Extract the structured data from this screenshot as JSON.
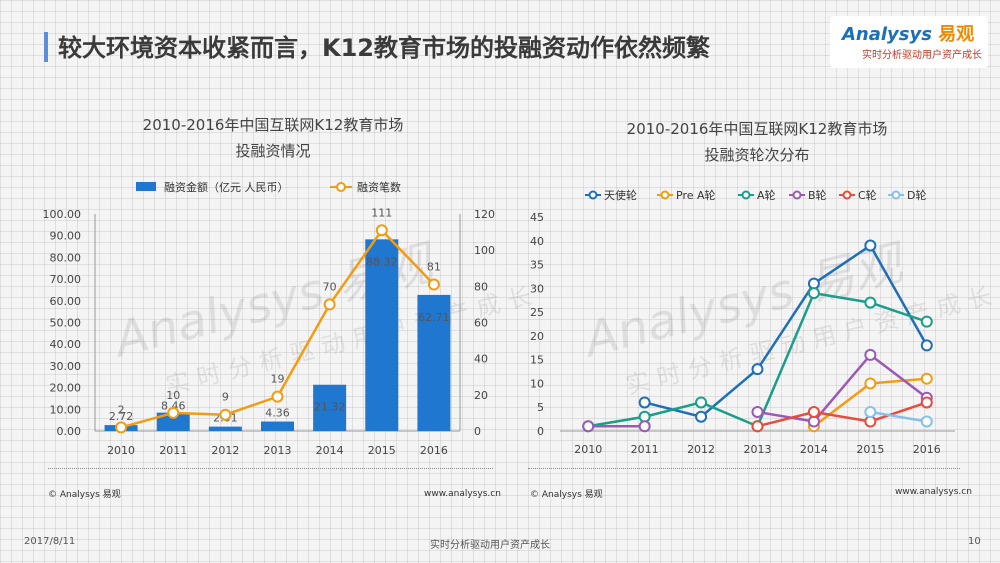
{
  "page": {
    "title": "较大环境资本收紧而言，K12教育市场的投融资动作依然频繁",
    "date": "2017/8/11",
    "slogan": "实时分析驱动用户资产成长",
    "page_number": "10"
  },
  "logo": {
    "brand": "Analysys",
    "brand_cn": "易观",
    "tagline": "实时分析驱动用户资产成长"
  },
  "watermark": {
    "text": "Analysys 易观",
    "sub": "实时分析驱动用户资产成长"
  },
  "left_footer": {
    "copyright": "© Analysys 易观",
    "url": "www.analysys.cn"
  },
  "right_footer": {
    "copyright": "© Analysys 易观",
    "url": "www.analysys.cn"
  },
  "colors": {
    "bar": "#1f77d0",
    "line_orange": "#f39c12",
    "title_accent": "#5b8fd8"
  },
  "chart_data": [
    {
      "type": "bar",
      "title_line1": "2010-2016年中国互联网K12教育市场",
      "title_line2": "投融资情况",
      "categories": [
        "2010",
        "2011",
        "2012",
        "2013",
        "2014",
        "2015",
        "2016"
      ],
      "series": [
        {
          "name": "融资金额（亿元 人民币）",
          "type": "bar",
          "axis": "left",
          "values": [
            2.72,
            8.46,
            2.01,
            4.36,
            21.32,
            88.32,
            62.71
          ],
          "color": "#1f77d0"
        },
        {
          "name": "融资笔数",
          "type": "line",
          "axis": "right",
          "values": [
            2,
            10,
            9,
            19,
            70,
            111,
            81
          ],
          "color": "#f39c12"
        }
      ],
      "bar_labels": [
        "2.72",
        "8.46",
        "2.01",
        "4.36",
        "21.32",
        "88.32",
        "62.71"
      ],
      "line_labels": [
        "2",
        "10",
        "9",
        "19",
        "70",
        "111",
        "81"
      ],
      "ylim_left": [
        0,
        100
      ],
      "yticks_left": [
        "0.00",
        "10.00",
        "20.00",
        "30.00",
        "40.00",
        "50.00",
        "60.00",
        "70.00",
        "80.00",
        "90.00",
        "100.00"
      ],
      "ylim_right": [
        0,
        120
      ],
      "yticks_right": [
        "0",
        "20",
        "40",
        "60",
        "80",
        "100",
        "120"
      ],
      "legend_position": "top"
    },
    {
      "type": "line",
      "title_line1": "2010-2016年中国互联网K12教育市场",
      "title_line2": "投融资轮次分布",
      "x": [
        "2010",
        "2011",
        "2012",
        "2013",
        "2014",
        "2015",
        "2016"
      ],
      "ylim": [
        0,
        45
      ],
      "yticks": [
        "0",
        "5",
        "10",
        "15",
        "20",
        "25",
        "30",
        "35",
        "40",
        "45"
      ],
      "legend_position": "top",
      "series": [
        {
          "name": "天使轮",
          "color": "#1f6fb8",
          "values": [
            null,
            6,
            3,
            13,
            31,
            39,
            18
          ]
        },
        {
          "name": "Pre A轮",
          "color": "#f39c12",
          "values": [
            null,
            null,
            null,
            null,
            1,
            10,
            11
          ]
        },
        {
          "name": "A轮",
          "color": "#1a9e8a",
          "values": [
            1,
            3,
            6,
            1,
            29,
            27,
            23
          ]
        },
        {
          "name": "B轮",
          "color": "#9b59b6",
          "values": [
            1,
            1,
            null,
            4,
            2,
            16,
            7
          ]
        },
        {
          "name": "C轮",
          "color": "#e74c3c",
          "values": [
            null,
            null,
            null,
            1,
            4,
            2,
            6
          ]
        },
        {
          "name": "D轮",
          "color": "#85c1e9",
          "values": [
            null,
            null,
            null,
            null,
            null,
            4,
            2
          ]
        }
      ]
    }
  ]
}
